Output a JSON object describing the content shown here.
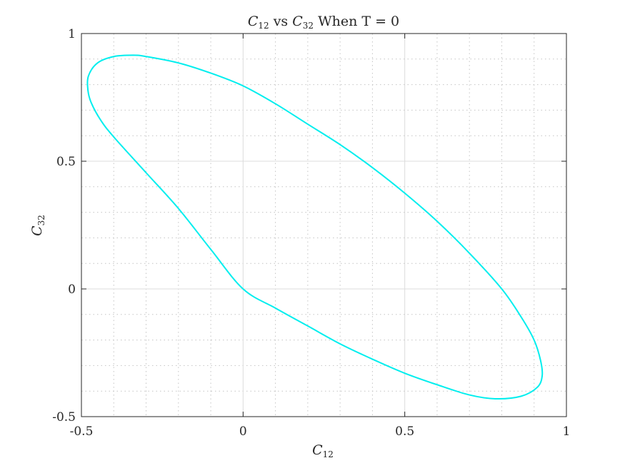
{
  "chart_data": {
    "type": "line",
    "title": {
      "left_var": "C",
      "left_sub": "12",
      "mid": " vs ",
      "right_var": "C",
      "right_sub": "32",
      "rest": " When T = 0"
    },
    "xlabel": {
      "var": "C",
      "sub": "12"
    },
    "ylabel": {
      "var": "C",
      "sub": "32"
    },
    "xlim": [
      -0.5,
      1
    ],
    "ylim": [
      -0.5,
      1
    ],
    "xticks": [
      -0.5,
      0,
      0.5,
      1
    ],
    "yticks": [
      -0.5,
      0,
      0.5,
      1
    ],
    "xtick_labels": [
      "-0.5",
      "0",
      "0.5",
      "1"
    ],
    "ytick_labels": [
      "-0.5",
      "0",
      "0.5",
      "1"
    ],
    "grid": "major solid, minor dotted",
    "box": true,
    "series": [
      {
        "color": "#00eeee",
        "x": [
          0.0,
          0.1,
          0.2,
          0.3,
          0.4,
          0.5,
          0.6,
          0.7,
          0.78,
          0.86,
          0.91,
          0.925,
          0.92,
          0.9,
          0.86,
          0.8,
          0.7,
          0.6,
          0.5,
          0.4,
          0.3,
          0.2,
          0.1,
          0.0,
          -0.1,
          -0.2,
          -0.3,
          -0.34,
          -0.4,
          -0.45,
          -0.478,
          -0.48,
          -0.47,
          -0.44,
          -0.4,
          -0.3,
          -0.2,
          -0.1,
          0.0
        ],
        "y": [
          0.0,
          -0.075,
          -0.145,
          -0.215,
          -0.275,
          -0.33,
          -0.375,
          -0.415,
          -0.43,
          -0.42,
          -0.385,
          -0.34,
          -0.28,
          -0.2,
          -0.11,
          0.0,
          0.14,
          0.265,
          0.375,
          0.475,
          0.565,
          0.645,
          0.725,
          0.795,
          0.845,
          0.885,
          0.91,
          0.915,
          0.91,
          0.885,
          0.835,
          0.78,
          0.73,
          0.66,
          0.595,
          0.455,
          0.315,
          0.155,
          0.0
        ]
      }
    ]
  }
}
